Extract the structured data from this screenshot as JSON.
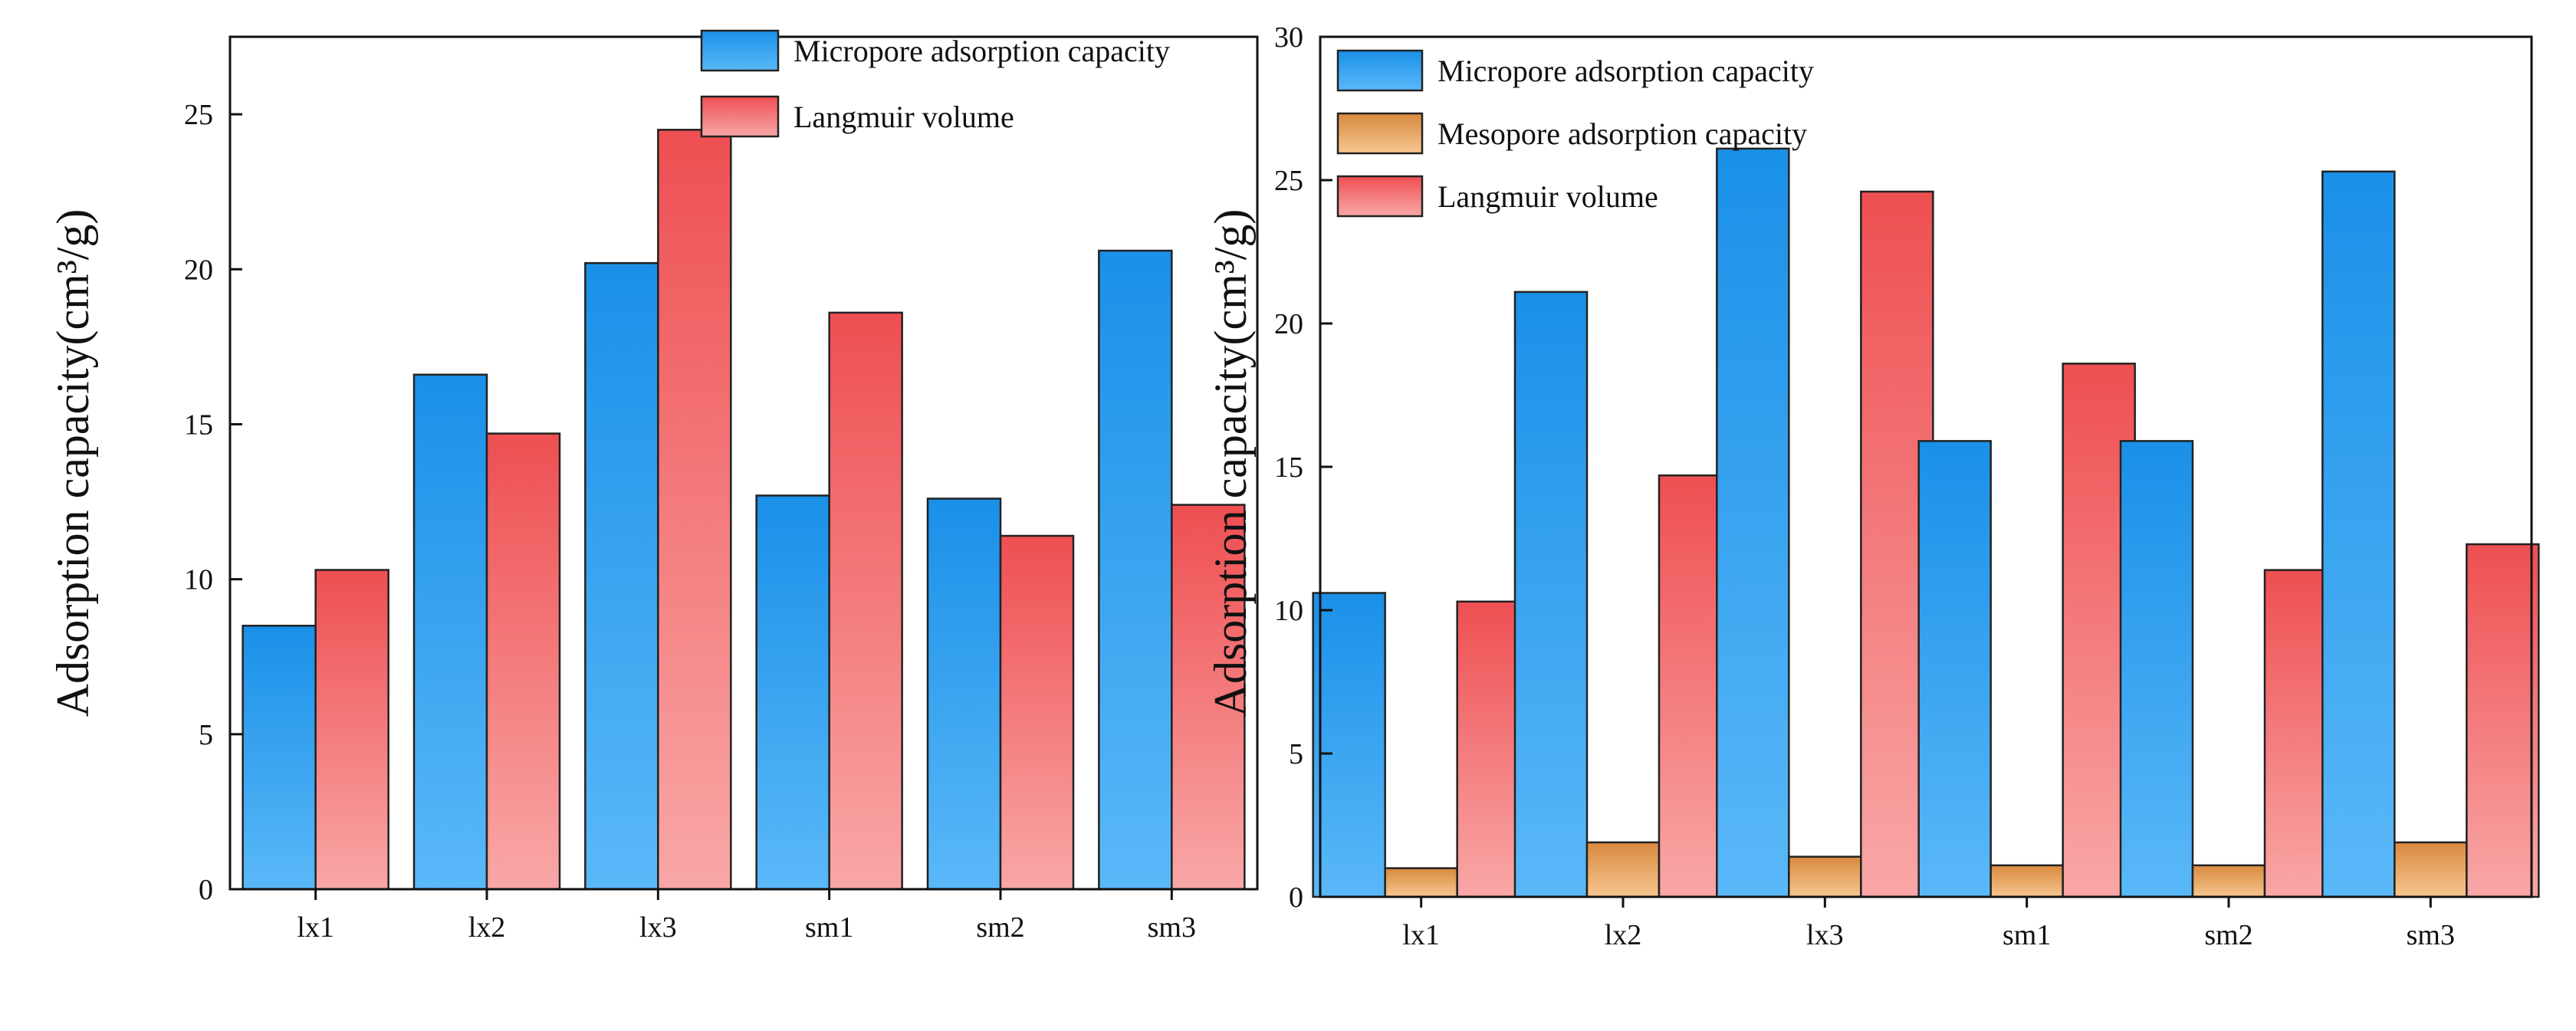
{
  "chart_data": [
    {
      "type": "bar",
      "categories": [
        "lx1",
        "lx2",
        "lx3",
        "sm1",
        "sm2",
        "sm3"
      ],
      "series": [
        {
          "name": "Micropore adsorption capacity",
          "values": [
            8.5,
            16.6,
            20.2,
            12.7,
            12.6,
            20.6
          ]
        },
        {
          "name": "Langmuir volume",
          "values": [
            10.3,
            14.7,
            24.5,
            18.6,
            11.4,
            12.4
          ]
        }
      ],
      "ylabel": "Adsorption capacity(cm³/g)",
      "ylim": [
        0,
        27.5
      ],
      "yticks": [
        0,
        5,
        10,
        15,
        20,
        25
      ],
      "legend": "top-right",
      "grid": false
    },
    {
      "type": "bar",
      "categories": [
        "lx1",
        "lx2",
        "lx3",
        "sm1",
        "sm2",
        "sm3"
      ],
      "series": [
        {
          "name": "Micropore adsorption capacity",
          "values": [
            10.6,
            21.1,
            26.1,
            15.9,
            15.9,
            25.3
          ]
        },
        {
          "name": "Mesopore adsorption capacity",
          "values": [
            1.0,
            1.9,
            1.4,
            1.1,
            1.1,
            1.9
          ]
        },
        {
          "name": "Langmuir volume",
          "values": [
            10.3,
            14.7,
            24.6,
            18.6,
            11.4,
            12.3
          ]
        }
      ],
      "ylabel": "Adsorption capacity(cm³/g)",
      "ylim": [
        0,
        30
      ],
      "yticks": [
        0,
        5,
        10,
        15,
        20,
        25,
        30
      ],
      "legend": "top-left",
      "grid": false
    }
  ],
  "colors": {
    "blue_top": "#1a90e8",
    "blue_bottom": "#5ab8f8",
    "orange_top": "#d98a3e",
    "orange_bottom": "#f6c690",
    "red_top": "#ee4f52",
    "red_bottom": "#f9a7a7"
  }
}
